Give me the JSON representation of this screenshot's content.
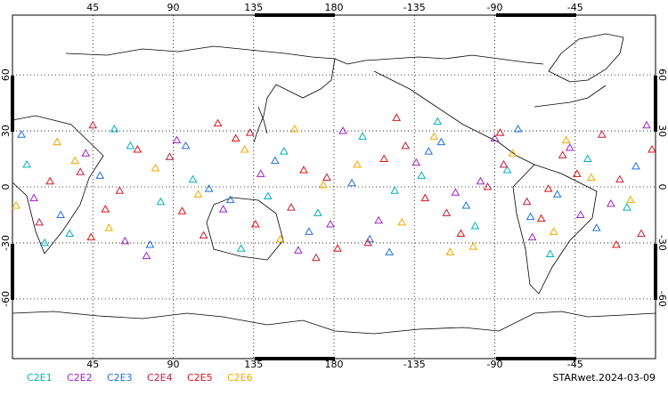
{
  "chart_data": {
    "type": "scatter",
    "xlim": [
      0,
      360
    ],
    "ylim": [
      -92,
      92
    ],
    "xticks": [
      45,
      90,
      135,
      180,
      {
        "value": 225,
        "label": "-135"
      },
      {
        "value": 270,
        "label": "-90"
      },
      {
        "value": 315,
        "label": "-45"
      }
    ],
    "yticks": [
      -60,
      -30,
      0,
      30,
      60
    ],
    "grid": true,
    "footer": "STARwet.2024-03-09",
    "series": [
      {
        "name": "C2E1",
        "color": "#00b0c0",
        "x": [
          8,
          32,
          57,
          83,
          101,
          128,
          152,
          171,
          196,
          214,
          238,
          259,
          277,
          301,
          322,
          344,
          18,
          66,
          143,
          229
        ],
        "values": [
          12,
          -25,
          31,
          -8,
          4,
          -33,
          19,
          -14,
          27,
          -2,
          35,
          -21,
          9,
          -36,
          15,
          -11,
          -30,
          22,
          -5,
          6
        ]
      },
      {
        "name": "C2E2",
        "color": "#a020c8",
        "x": [
          12,
          41,
          63,
          92,
          118,
          139,
          160,
          185,
          205,
          226,
          248,
          270,
          291,
          312,
          335,
          355,
          75,
          178,
          262,
          318
        ],
        "values": [
          -6,
          18,
          -29,
          25,
          -12,
          7,
          -34,
          30,
          -18,
          13,
          -3,
          26,
          -27,
          21,
          -9,
          33,
          -37,
          -20,
          3,
          -15
        ]
      },
      {
        "name": "C2E3",
        "color": "#2070e0",
        "x": [
          5,
          27,
          49,
          77,
          97,
          122,
          147,
          166,
          190,
          211,
          233,
          254,
          283,
          305,
          327,
          349,
          110,
          200,
          240,
          290
        ],
        "values": [
          28,
          -15,
          6,
          -31,
          22,
          -7,
          14,
          -24,
          2,
          -35,
          19,
          -10,
          31,
          -4,
          -22,
          11,
          -1,
          -28,
          24,
          -16
        ]
      },
      {
        "name": "C2E4",
        "color": "#c0203c",
        "x": [
          15,
          38,
          60,
          88,
          107,
          133,
          156,
          176,
          199,
          220,
          243,
          266,
          288,
          308,
          330,
          352,
          45,
          170,
          275,
          340
        ],
        "values": [
          -19,
          8,
          -2,
          16,
          -26,
          29,
          -11,
          5,
          -30,
          22,
          -14,
          0,
          -8,
          17,
          28,
          -25,
          33,
          -38,
          12,
          4
        ]
      },
      {
        "name": "C2E5",
        "color": "#e01010",
        "x": [
          21,
          44,
          70,
          95,
          115,
          136,
          163,
          182,
          208,
          231,
          251,
          273,
          296,
          316,
          338,
          358,
          52,
          125,
          215,
          300
        ],
        "values": [
          3,
          -27,
          20,
          -13,
          34,
          -20,
          9,
          -33,
          15,
          -6,
          -25,
          29,
          -17,
          7,
          -31,
          20,
          -12,
          26,
          37,
          -1
        ]
      },
      {
        "name": "C2E6",
        "color": "#f0a800",
        "x": [
          2,
          25,
          54,
          80,
          104,
          130,
          150,
          174,
          193,
          218,
          236,
          258,
          280,
          303,
          324,
          346,
          35,
          158,
          245,
          310
        ],
        "values": [
          -10,
          24,
          -22,
          10,
          -4,
          20,
          -28,
          1,
          12,
          -19,
          27,
          -32,
          18,
          -24,
          5,
          -7,
          14,
          31,
          -35,
          25
        ]
      }
    ]
  }
}
